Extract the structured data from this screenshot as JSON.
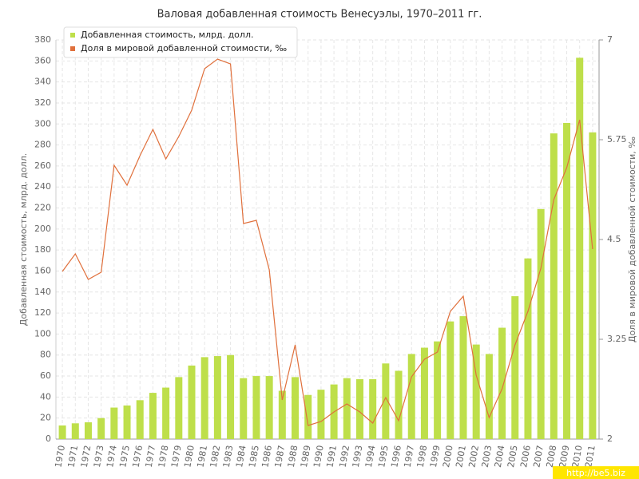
{
  "chart_data": {
    "type": "bar",
    "title": "Валовая добавленная стоимость Венесуэлы, 1970–2011 гг.",
    "y_label": "Добавленная стоимость, млрд. долл.",
    "y2_label": "Доля в мировой добавленной стоимости, ‰",
    "watermark": "http://be5.biz",
    "categories": [
      "1970",
      "1971",
      "1972",
      "1973",
      "1974",
      "1975",
      "1976",
      "1977",
      "1978",
      "1979",
      "1980",
      "1981",
      "1982",
      "1983",
      "1984",
      "1985",
      "1986",
      "1987",
      "1988",
      "1989",
      "1990",
      "1991",
      "1992",
      "1993",
      "1994",
      "1995",
      "1996",
      "1997",
      "1998",
      "1999",
      "2000",
      "2001",
      "2002",
      "2003",
      "2004",
      "2005",
      "2006",
      "2007",
      "2008",
      "2009",
      "2010",
      "2011"
    ],
    "series": [
      {
        "name": "Добавленная стоимость, млрд. долл.",
        "type": "bar",
        "color": "#bedf4a",
        "values": [
          13,
          15,
          16,
          20,
          30,
          32,
          37,
          44,
          49,
          59,
          70,
          78,
          79,
          80,
          58,
          60,
          60,
          46,
          59,
          42,
          47,
          52,
          58,
          57,
          57,
          72,
          65,
          81,
          87,
          93,
          112,
          117,
          90,
          81,
          106,
          136,
          172,
          219,
          291,
          301,
          363,
          292
        ]
      },
      {
        "name": "Доля в мировой добавленной стоимости, ‰",
        "type": "line",
        "axis": "y2",
        "color": "#e0703c",
        "values": [
          4.1,
          4.32,
          4.0,
          4.09,
          5.43,
          5.18,
          5.55,
          5.88,
          5.51,
          5.79,
          6.12,
          6.64,
          6.76,
          6.7,
          4.7,
          4.74,
          4.12,
          2.49,
          3.18,
          2.17,
          2.22,
          2.34,
          2.44,
          2.34,
          2.2,
          2.52,
          2.23,
          2.78,
          3.0,
          3.09,
          3.6,
          3.79,
          2.8,
          2.27,
          2.63,
          3.18,
          3.6,
          4.14,
          5.0,
          5.4,
          6.0,
          4.38
        ]
      }
    ],
    "ylim": [
      0,
      380
    ],
    "yticks": [
      0,
      20,
      40,
      60,
      80,
      100,
      120,
      140,
      160,
      180,
      200,
      220,
      240,
      260,
      280,
      300,
      320,
      340,
      360,
      380
    ],
    "y2lim": [
      2,
      7
    ],
    "y2ticks": [
      2,
      3.25,
      4.5,
      5.75,
      7
    ],
    "grid": true
  }
}
